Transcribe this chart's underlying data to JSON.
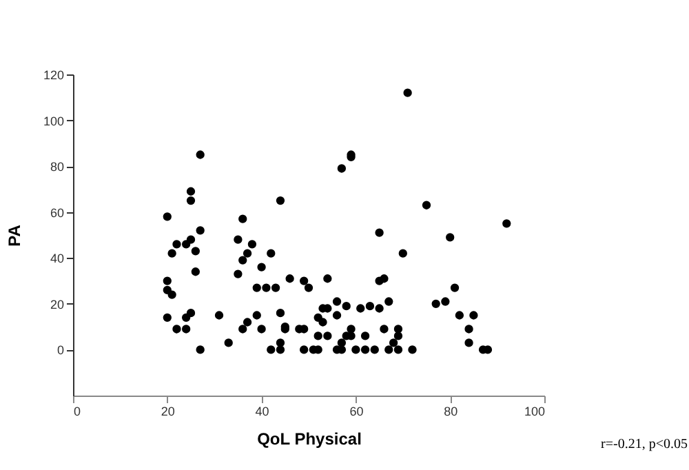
{
  "chart_data": {
    "type": "scatter",
    "xlabel": "QoL Physical",
    "ylabel": "PA",
    "x": [
      20,
      20,
      20,
      21,
      20,
      21,
      22,
      22,
      24,
      24,
      24,
      25,
      25,
      25,
      25,
      26,
      26,
      27,
      27,
      27,
      31,
      33,
      35,
      35,
      36,
      36,
      36,
      37,
      37,
      38,
      39,
      39,
      40,
      40,
      41,
      42,
      42,
      43,
      44,
      44,
      44,
      44,
      45,
      45,
      46,
      48,
      49,
      49,
      49,
      50,
      51,
      52,
      52,
      52,
      53,
      53,
      54,
      54,
      54,
      56,
      56,
      58,
      56,
      57,
      57,
      58,
      59,
      59,
      60,
      57,
      59,
      59,
      61,
      62,
      62,
      63,
      64,
      65,
      65,
      66,
      65,
      66,
      67,
      67,
      68,
      69,
      69,
      69,
      70,
      71,
      72,
      75,
      77,
      79,
      80,
      81,
      82,
      84,
      84,
      85,
      87,
      88,
      92
    ],
    "series": [
      {
        "color": "#000000",
        "values": [
          58,
          30,
          26,
          24,
          14,
          42,
          46,
          9,
          46,
          14,
          9,
          48,
          69,
          65,
          16,
          43,
          34,
          85,
          52,
          0,
          15,
          3,
          48,
          33,
          57,
          39,
          9,
          42,
          12,
          46,
          15,
          27,
          36,
          9,
          27,
          42,
          0,
          27,
          65,
          16,
          3,
          0,
          10,
          9,
          31,
          9,
          30,
          9,
          0,
          27,
          0,
          14,
          6,
          0,
          12,
          18,
          31,
          18,
          6,
          21,
          15,
          19,
          0,
          0,
          3,
          6,
          6,
          9,
          0,
          79,
          85,
          84,
          18,
          6,
          0,
          19,
          0,
          18,
          30,
          31,
          51,
          9,
          21,
          0,
          3,
          9,
          6,
          0,
          42,
          112,
          0,
          63,
          20,
          21,
          49,
          27,
          15,
          9,
          3,
          15,
          0,
          0,
          55
        ]
      }
    ],
    "xlim": [
      0,
      100
    ],
    "xticks": [
      0,
      20,
      40,
      60,
      80,
      100
    ],
    "ylim": [
      -20,
      120
    ],
    "yticks": [
      0,
      20,
      40,
      60,
      80,
      100,
      120
    ],
    "marker": "circle",
    "grid": false,
    "annotations": [
      "r=-0.21, p<0.05"
    ]
  }
}
